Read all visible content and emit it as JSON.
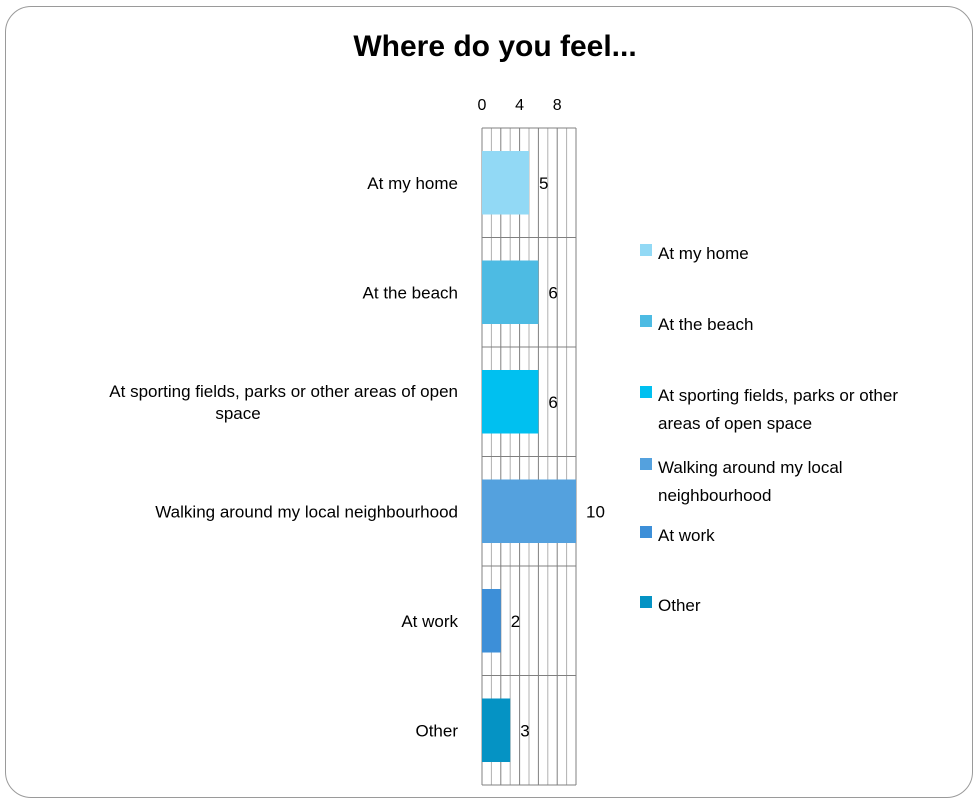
{
  "chart_data": {
    "type": "bar",
    "orientation": "horizontal",
    "title": "Where do you feel...",
    "categories": [
      [
        "At my home"
      ],
      [
        "At the beach"
      ],
      [
        "At sporting fields, parks or other areas of open",
        "space"
      ],
      [
        "Walking around my local neighbourhood"
      ],
      [
        "At work"
      ],
      [
        "Other"
      ]
    ],
    "values": [
      5,
      6,
      6,
      10,
      2,
      3
    ],
    "data_labels": [
      "5",
      "6",
      "6",
      "10",
      "2",
      "3"
    ],
    "colors": [
      "#92d9f5",
      "#4dbbe3",
      "#00c0f0",
      "#54a1de",
      "#3d8fd8",
      "#0593c4"
    ],
    "xlim": [
      0,
      10
    ],
    "x_ticks": [
      "0",
      "4",
      "8"
    ],
    "grid": true,
    "legend_position": "right",
    "legend": [
      [
        "At my home"
      ],
      [
        "At the beach"
      ],
      [
        "At sporting fields, parks or other",
        "areas of open space"
      ],
      [
        "Walking around my local",
        "neighbourhood"
      ],
      [
        "At work"
      ],
      [
        "Other"
      ]
    ]
  }
}
